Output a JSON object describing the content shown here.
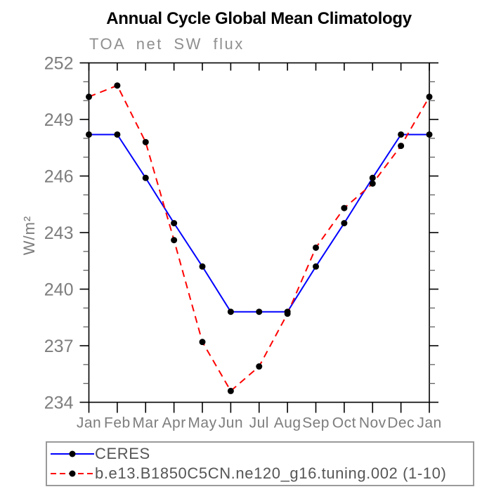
{
  "chart_data": {
    "type": "line",
    "title": "Annual Cycle Global Mean Climatology",
    "subtitle": "TOA net SW flux",
    "xlabel": "",
    "ylabel": "W/m²",
    "categories": [
      "Jan",
      "Feb",
      "Mar",
      "Apr",
      "May",
      "Jun",
      "Jul",
      "Aug",
      "Sep",
      "Oct",
      "Nov",
      "Dec",
      "Jan"
    ],
    "ylim": [
      234,
      252
    ],
    "yticks": [
      234,
      237,
      240,
      243,
      246,
      249,
      252
    ],
    "ytick_step": 3,
    "ytick_minor_step": 1,
    "grid": false,
    "legend_position": "below-plot-boxed",
    "series": [
      {
        "name": "CERES",
        "color": "#0000ff",
        "style": "solid",
        "marker": "circle",
        "marker_color": "#000000",
        "values": [
          248.2,
          248.2,
          245.9,
          243.5,
          241.2,
          238.8,
          238.8,
          238.8,
          241.2,
          243.5,
          245.9,
          248.2,
          248.2
        ]
      },
      {
        "name": "b.e13.B1850C5CN.ne120_g16.tuning.002 (1-10)",
        "color": "#ff0000",
        "style": "dashed",
        "marker": "circle",
        "marker_color": "#000000",
        "values": [
          250.2,
          250.8,
          247.8,
          242.6,
          237.2,
          234.6,
          235.9,
          238.7,
          242.2,
          244.3,
          245.6,
          247.6,
          250.2
        ]
      }
    ]
  },
  "colors": {
    "axis": "#000000",
    "tick_label": "#7d7d7d",
    "title": "#000000",
    "subtitle": "#8f8f8f",
    "legend_border": "#9a9a9a",
    "legend_text": "#565656"
  }
}
